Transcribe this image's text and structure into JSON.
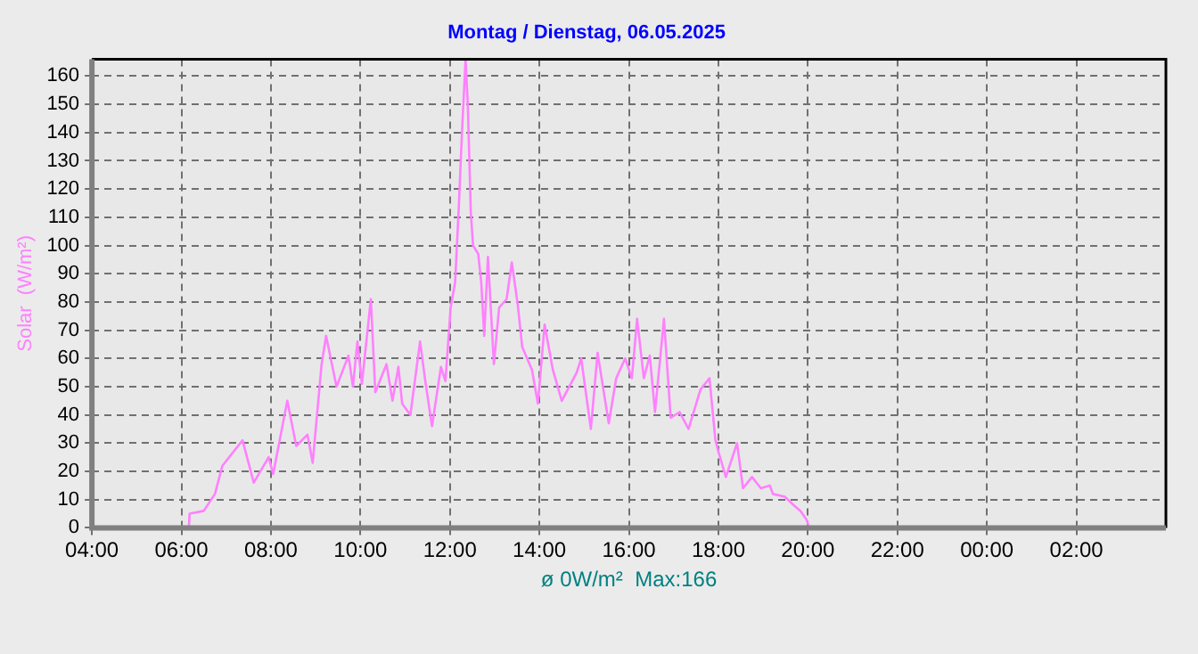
{
  "chart_data": {
    "type": "line",
    "title": "Montag / Dienstag, 06.05.2025",
    "ylabel": "Solar  (W/m²)",
    "xlabel": "ø 0W/m²  Max:166",
    "xlim": [
      "2025-05-06T04:00",
      "2025-05-07T04:00"
    ],
    "xticks": [
      {
        "value": "2025-05-06T04:00",
        "label": "04:00"
      },
      {
        "value": "2025-05-06T06:00",
        "label": "06:00"
      },
      {
        "value": "2025-05-06T08:00",
        "label": "08:00"
      },
      {
        "value": "2025-05-06T10:00",
        "label": "10:00"
      },
      {
        "value": "2025-05-06T12:00",
        "label": "12:00"
      },
      {
        "value": "2025-05-06T14:00",
        "label": "14:00"
      },
      {
        "value": "2025-05-06T16:00",
        "label": "16:00"
      },
      {
        "value": "2025-05-06T18:00",
        "label": "18:00"
      },
      {
        "value": "2025-05-06T20:00",
        "label": "20:00"
      },
      {
        "value": "2025-05-06T22:00",
        "label": "22:00"
      },
      {
        "value": "2025-05-07T00:00",
        "label": "00:00"
      },
      {
        "value": "2025-05-07T02:00",
        "label": "02:00"
      }
    ],
    "ylim": [
      0,
      166
    ],
    "yticks": [
      0,
      10,
      20,
      30,
      40,
      50,
      60,
      70,
      80,
      90,
      100,
      110,
      120,
      130,
      140,
      150,
      160
    ],
    "grid": true,
    "marker": "none",
    "line_style": "solid",
    "series": [
      {
        "color": "#ff80ff",
        "x": [
          "2025-05-06T04:00",
          "2025-05-06T06:10",
          "2025-05-06T06:11",
          "2025-05-06T06:30",
          "2025-05-06T06:45",
          "2025-05-06T06:55",
          "2025-05-06T07:22",
          "2025-05-06T07:37",
          "2025-05-06T07:57",
          "2025-05-06T08:03",
          "2025-05-06T08:22",
          "2025-05-06T08:34",
          "2025-05-06T08:49",
          "2025-05-06T08:56",
          "2025-05-06T09:08",
          "2025-05-06T09:14",
          "2025-05-06T09:28",
          "2025-05-06T09:44",
          "2025-05-06T09:50",
          "2025-05-06T09:56",
          "2025-05-06T10:02",
          "2025-05-06T10:14",
          "2025-05-06T10:20",
          "2025-05-06T10:35",
          "2025-05-06T10:43",
          "2025-05-06T10:51",
          "2025-05-06T10:56",
          "2025-05-06T11:07",
          "2025-05-06T11:20",
          "2025-05-06T11:27",
          "2025-05-06T11:36",
          "2025-05-06T11:48",
          "2025-05-06T11:54",
          "2025-05-06T12:01",
          "2025-05-06T12:07",
          "2025-05-06T12:12",
          "2025-05-06T12:16",
          "2025-05-06T12:21",
          "2025-05-06T12:24",
          "2025-05-06T12:28",
          "2025-05-06T12:31",
          "2025-05-06T12:38",
          "2025-05-06T12:42",
          "2025-05-06T12:46",
          "2025-05-06T12:51",
          "2025-05-06T12:59",
          "2025-05-06T13:06",
          "2025-05-06T13:16",
          "2025-05-06T13:23",
          "2025-05-06T13:31",
          "2025-05-06T13:37",
          "2025-05-06T13:50",
          "2025-05-06T13:58",
          "2025-05-06T14:07",
          "2025-05-06T14:18",
          "2025-05-06T14:30",
          "2025-05-06T14:50",
          "2025-05-06T14:56",
          "2025-05-06T15:09",
          "2025-05-06T15:18",
          "2025-05-06T15:33",
          "2025-05-06T15:43",
          "2025-05-06T15:55",
          "2025-05-06T16:04",
          "2025-05-06T16:11",
          "2025-05-06T16:20",
          "2025-05-06T16:28",
          "2025-05-06T16:35",
          "2025-05-06T16:47",
          "2025-05-06T16:56",
          "2025-05-06T17:08",
          "2025-05-06T17:20",
          "2025-05-06T17:36",
          "2025-05-06T17:48",
          "2025-05-06T17:56",
          "2025-05-06T18:00",
          "2025-05-06T18:10",
          "2025-05-06T18:25",
          "2025-05-06T18:33",
          "2025-05-06T18:45",
          "2025-05-06T18:57",
          "2025-05-06T19:09",
          "2025-05-06T19:13",
          "2025-05-06T19:29",
          "2025-05-06T19:41",
          "2025-05-06T19:50",
          "2025-05-06T19:58",
          "2025-05-06T20:02",
          "2025-05-07T04:00"
        ],
        "values": [
          0,
          0,
          5,
          6,
          12,
          22,
          31,
          16,
          25,
          19,
          45,
          29,
          33,
          23,
          58,
          68,
          50,
          61,
          50,
          66,
          51,
          81,
          48,
          58,
          45,
          57,
          44,
          40,
          66,
          52,
          36,
          57,
          52,
          78,
          87,
          114,
          139,
          166,
          150,
          112,
          100,
          97,
          87,
          68,
          96,
          58,
          78,
          81,
          94,
          79,
          64,
          56,
          44,
          72,
          56,
          45,
          55,
          60,
          35,
          62,
          37,
          53,
          60,
          53,
          74,
          53,
          61,
          41,
          74,
          39,
          41,
          35,
          49,
          53,
          31,
          27,
          18,
          30,
          14,
          18,
          14,
          15,
          12,
          11,
          8,
          6,
          3,
          0,
          0
        ]
      }
    ]
  }
}
